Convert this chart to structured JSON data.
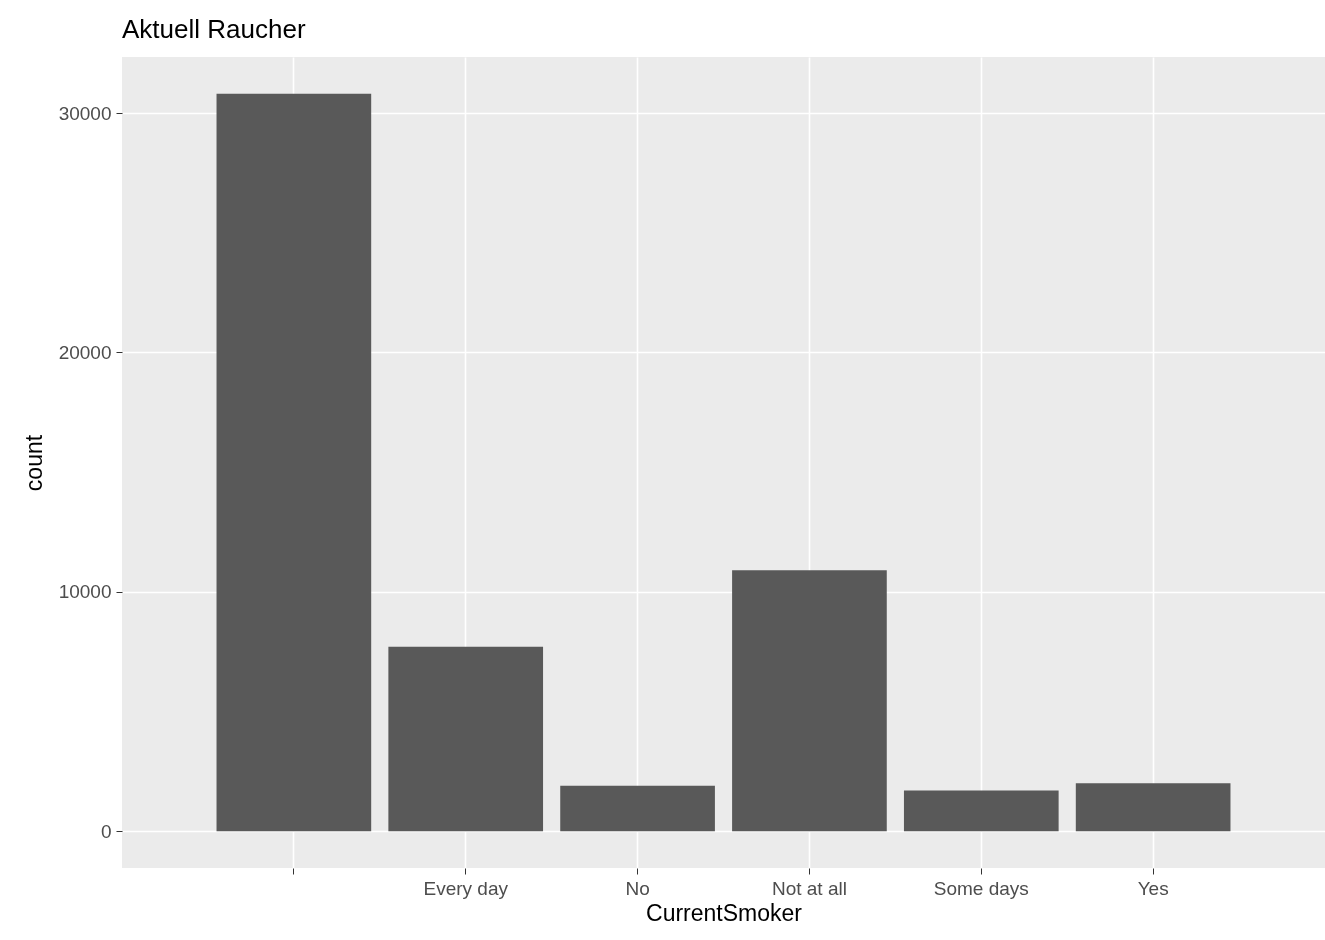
{
  "chart_data": {
    "type": "bar",
    "title": "Aktuell Raucher",
    "xlabel": "CurrentSmoker",
    "ylabel": "count",
    "categories": [
      null,
      "Every day",
      "No",
      "Not at all",
      "Some days",
      "Yes"
    ],
    "values": [
      30800,
      7700,
      1900,
      10900,
      1700,
      2000
    ],
    "color": "#595959",
    "ylim": [
      -1540,
      32340
    ],
    "yticks": [
      0,
      10000,
      20000,
      30000
    ],
    "grid": true
  }
}
